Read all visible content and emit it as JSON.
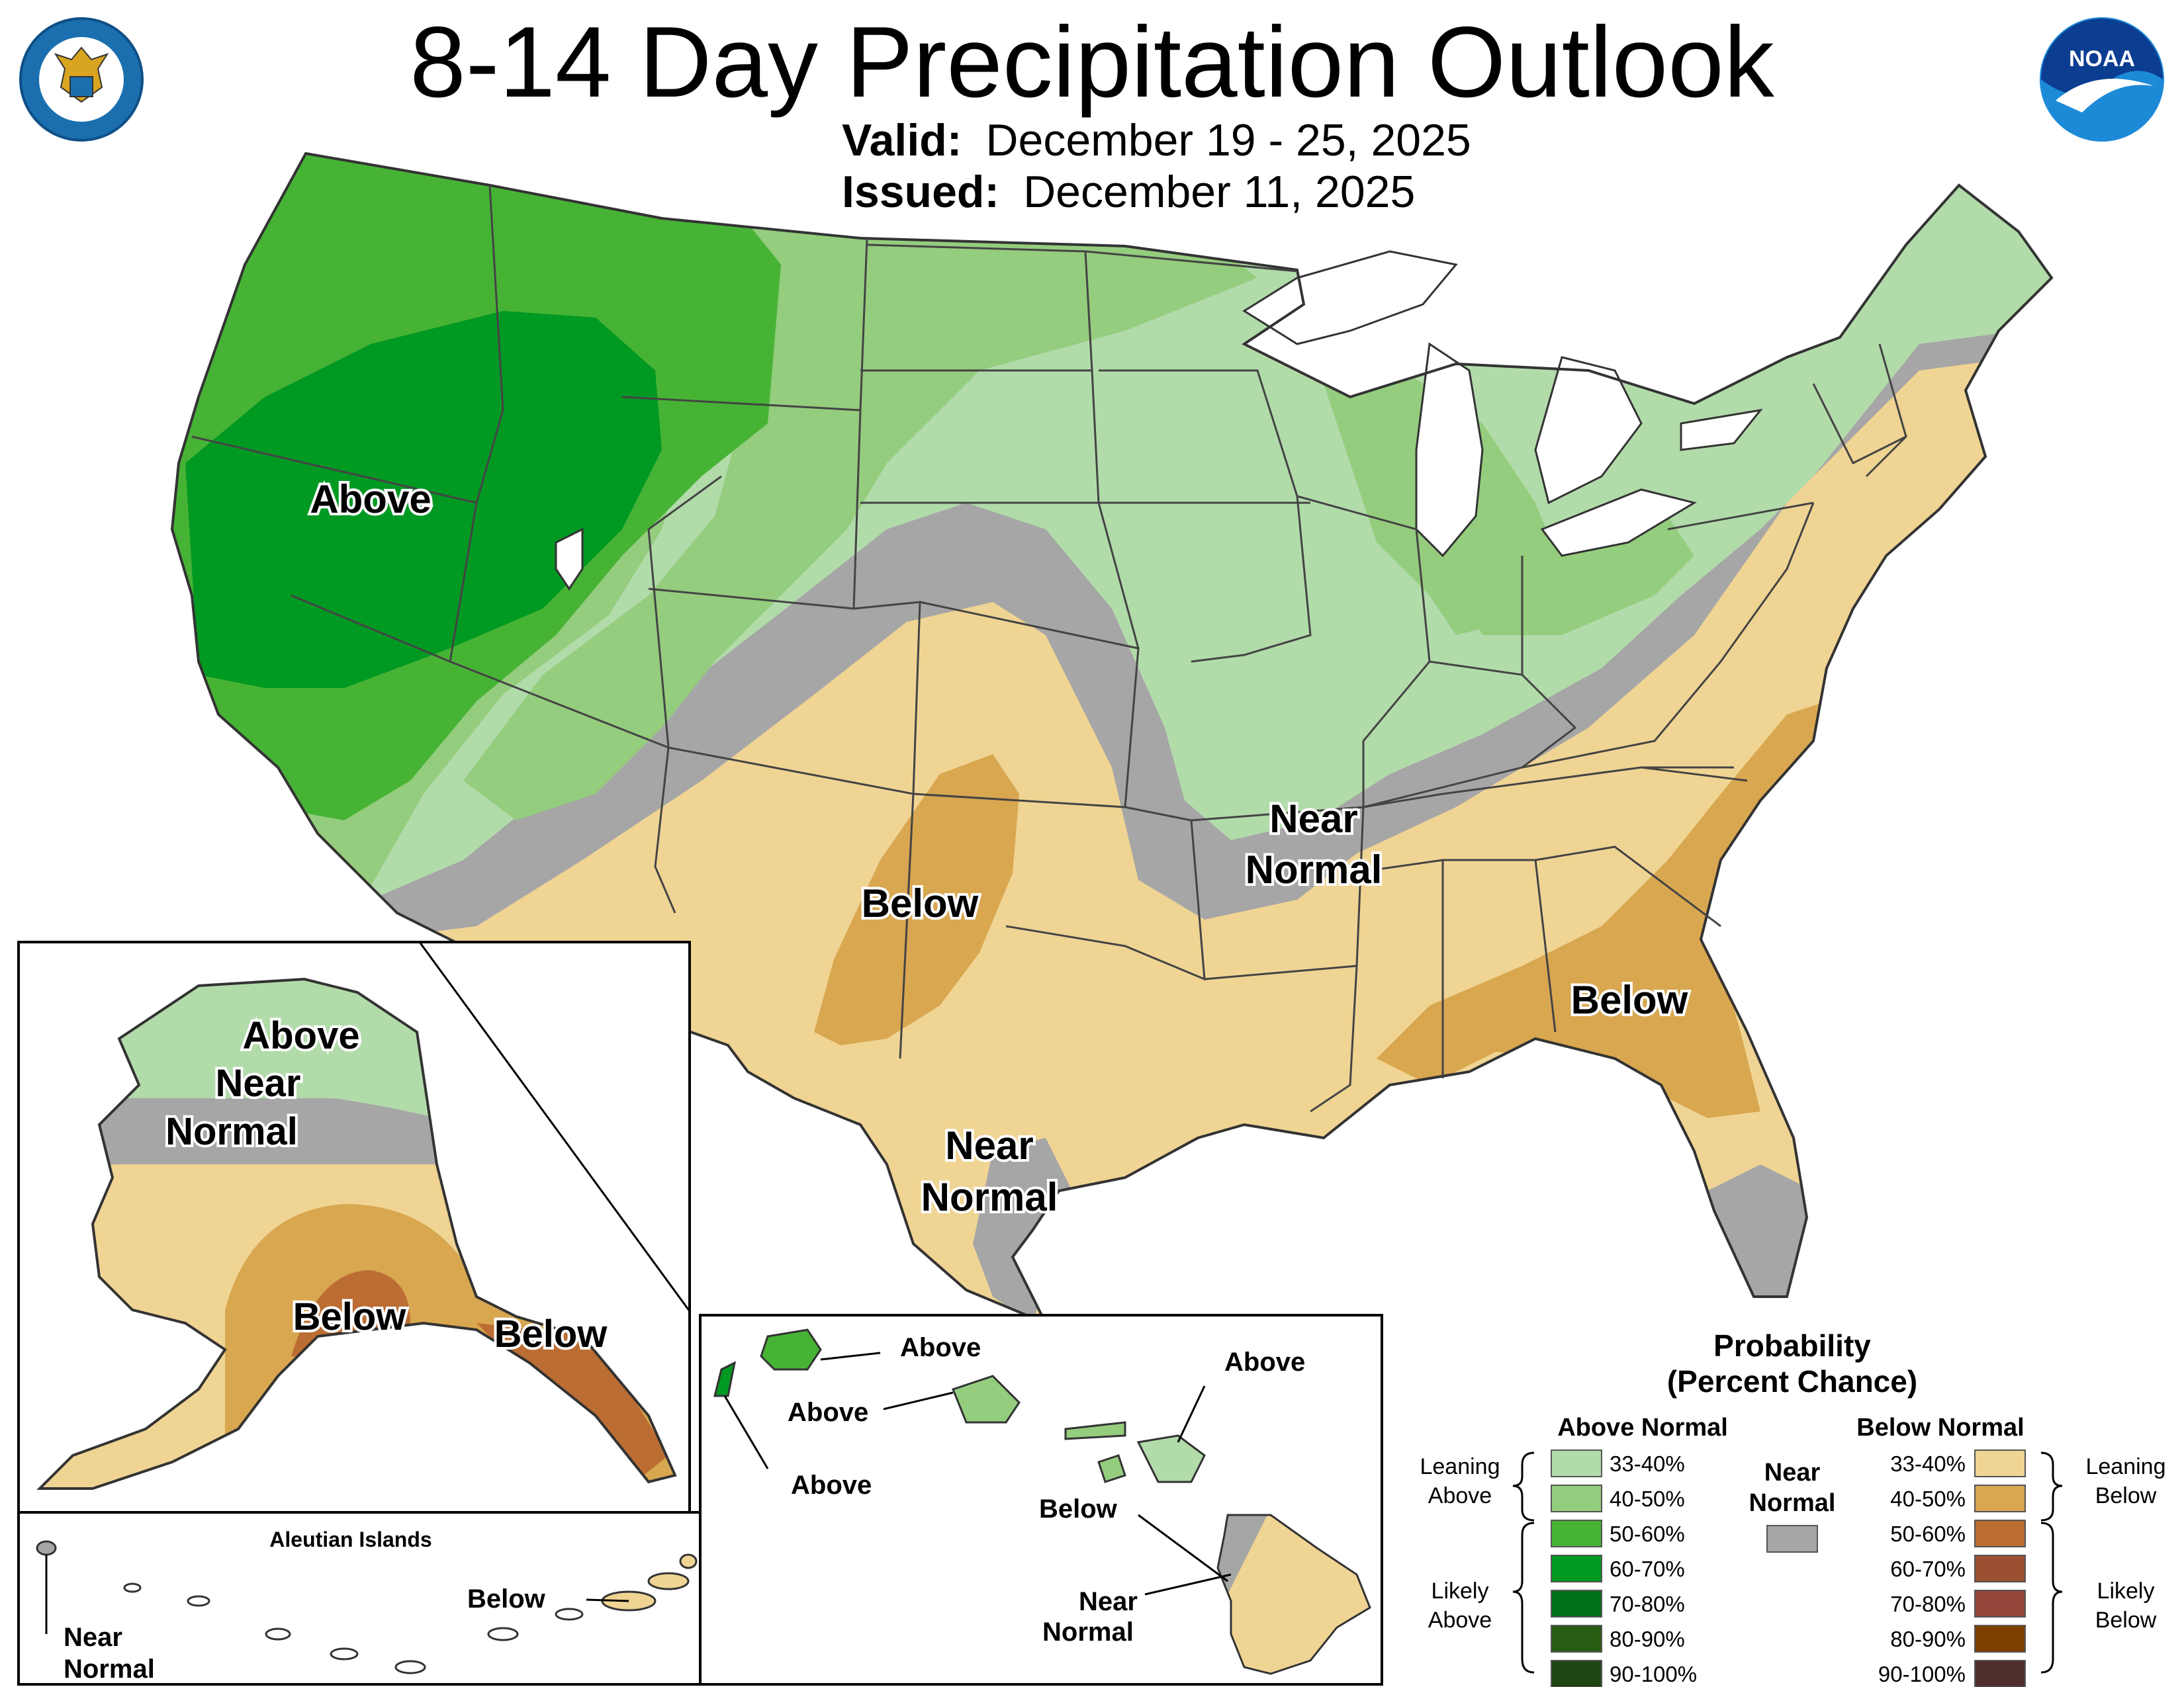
{
  "header": {
    "title": "8-14 Day Precipitation Outlook",
    "valid_label": "Valid:",
    "valid_value": "December 19 - 25, 2025",
    "issued_label": "Issued:",
    "issued_value": "December 11, 2025"
  },
  "logos": {
    "left": "department-of-commerce-seal",
    "right": "noaa-logo",
    "right_text": "NOAA",
    "left_text": "DEPARTMENT OF COMMERCE · UNITED STATES OF AMERICA"
  },
  "conus_labels": {
    "west": "Above",
    "plains": "Below",
    "mid_near_1": "Near",
    "mid_near_2": "Normal",
    "texas_near_1": "Near",
    "texas_near_2": "Normal",
    "southeast": "Below"
  },
  "alaska_labels": {
    "north": "Above",
    "near_1": "Near",
    "near_2": "Normal",
    "south": "Below",
    "panhandle": "Below"
  },
  "aleutian": {
    "title": "Aleutian Islands",
    "below": "Below",
    "near_1": "Near",
    "near_2": "Normal"
  },
  "hawaii_labels": {
    "kauai": "Above",
    "oahu": "Above",
    "niihau": "Above",
    "maui": "Above",
    "molokai": "Below",
    "bigisland_near_1": "Near",
    "bigisland_near_2": "Normal"
  },
  "legend": {
    "title_1": "Probability",
    "title_2": "(Percent Chance)",
    "above_header": "Above Normal",
    "below_header": "Below Normal",
    "near_header_1": "Near",
    "near_header_2": "Normal",
    "leaning_above_1": "Leaning",
    "leaning_above_2": "Above",
    "likely_above_1": "Likely",
    "likely_above_2": "Above",
    "leaning_below_1": "Leaning",
    "leaning_below_2": "Below",
    "likely_below_1": "Likely",
    "likely_below_2": "Below",
    "above_ranges": [
      "33-40%",
      "40-50%",
      "50-60%",
      "60-70%",
      "70-80%",
      "80-90%",
      "90-100%"
    ],
    "below_ranges": [
      "33-40%",
      "40-50%",
      "50-60%",
      "60-70%",
      "70-80%",
      "80-90%",
      "90-100%"
    ],
    "above_colors": [
      "#b2dbaa",
      "#94cd7e",
      "#47b335",
      "#009922",
      "#007018",
      "#285c12",
      "#1e4512"
    ],
    "below_colors": [
      "#f0d493",
      "#d8a750",
      "#bb6d33",
      "#9b5131",
      "#934639",
      "#7c3f00",
      "#4e2e2d"
    ],
    "near_color": "#a6a6a6"
  }
}
